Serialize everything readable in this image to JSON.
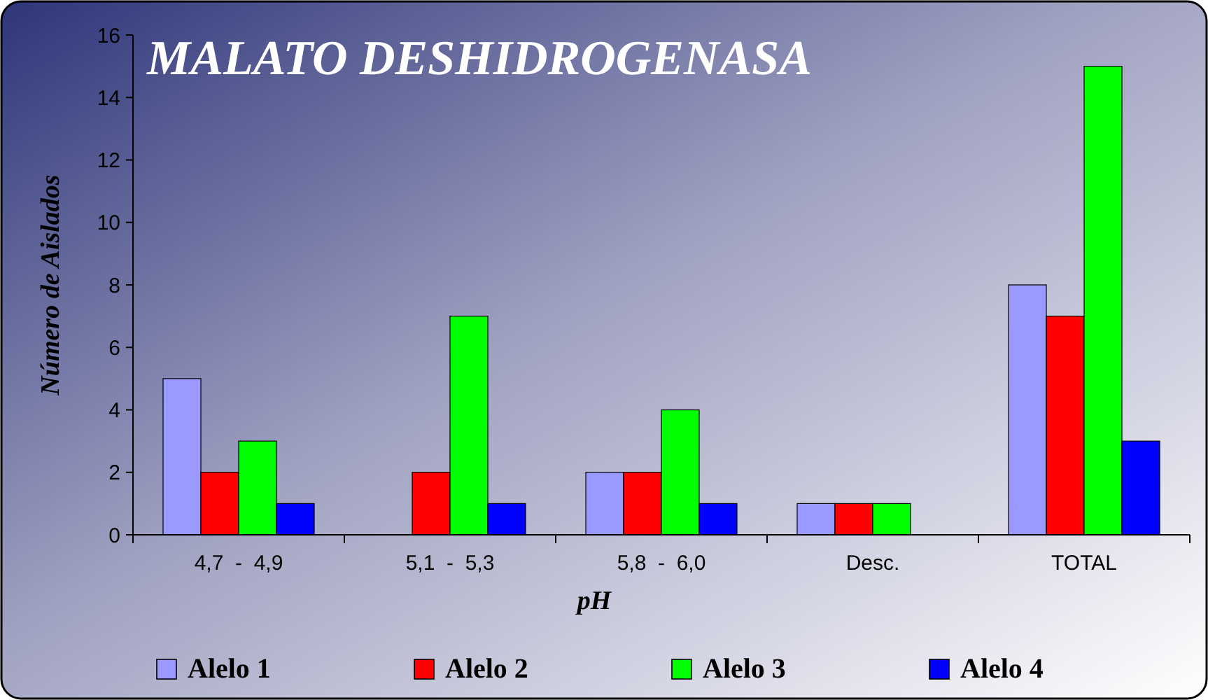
{
  "chart_data": {
    "type": "bar",
    "title": "MALATO DESHIDROGENASA",
    "xlabel": "pH",
    "ylabel": "Número de Aislados",
    "categories": [
      "4,7  -  4,9",
      "5,1  -  5,3",
      "5,8  -  6,0",
      "Desc.",
      "TOTAL"
    ],
    "series": [
      {
        "name": "Alelo 1",
        "color": "#9999ff",
        "values": [
          5,
          null,
          2,
          1,
          8
        ]
      },
      {
        "name": "Alelo 2",
        "color": "#ff0000",
        "values": [
          2,
          2,
          2,
          1,
          7
        ]
      },
      {
        "name": "Alelo 3",
        "color": "#00ff00",
        "values": [
          3,
          7,
          4,
          1,
          15
        ]
      },
      {
        "name": "Alelo 4",
        "color": "#0000ff",
        "values": [
          1,
          1,
          1,
          null,
          3
        ]
      }
    ],
    "ylim": [
      0,
      16
    ],
    "yticks": [
      0,
      2,
      4,
      6,
      8,
      10,
      12,
      14,
      16
    ],
    "grid": false,
    "legend": "bottom"
  }
}
